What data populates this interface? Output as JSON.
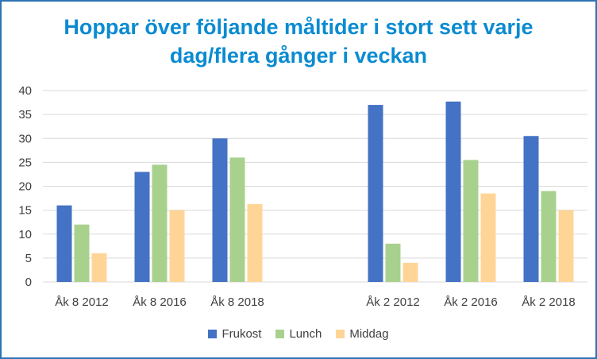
{
  "chart_data": {
    "type": "bar",
    "title_line1": "Hoppar över följande måltider i stort sett varje",
    "title_line2": "dag/flera gånger i veckan",
    "categories": [
      "Åk 8 2012",
      "Åk 8 2016",
      "Åk 8 2018",
      "",
      "Åk 2 2012",
      "Åk 2 2016",
      "Åk 2 2018"
    ],
    "series": [
      {
        "name": "Frukost",
        "color": "#4472c4",
        "values": [
          16,
          23,
          30,
          null,
          37,
          37.7,
          30.5
        ]
      },
      {
        "name": "Lunch",
        "color": "#a9d18e",
        "values": [
          12,
          24.5,
          26,
          null,
          8,
          25.5,
          19
        ]
      },
      {
        "name": "Middag",
        "color": "#ffd597",
        "values": [
          6,
          15,
          16.3,
          null,
          4,
          18.5,
          15
        ]
      }
    ],
    "y_ticks": [
      "0",
      "5",
      "10",
      "15",
      "20",
      "25",
      "30",
      "35",
      "40"
    ],
    "ylim": [
      0,
      40
    ],
    "grid": true,
    "legend_position": "bottom"
  }
}
